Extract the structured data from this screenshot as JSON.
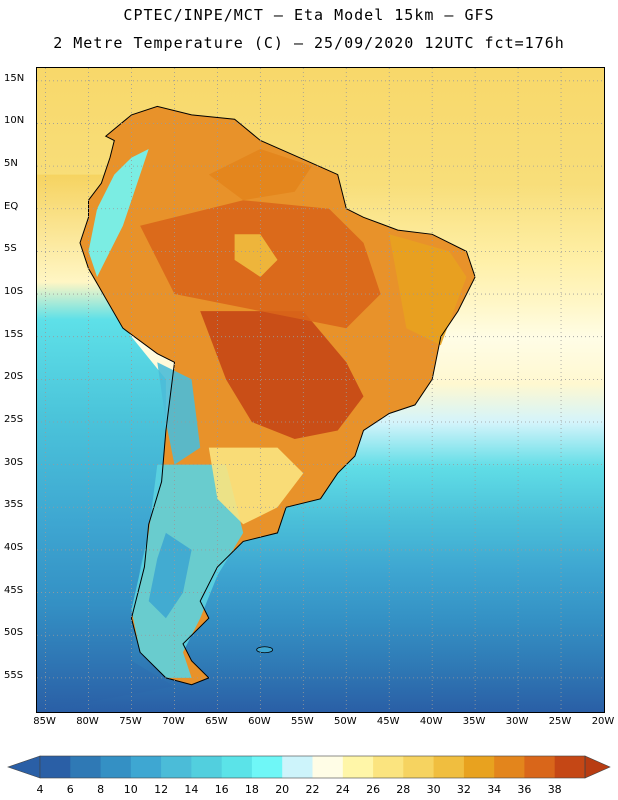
{
  "header": {
    "line1": "CPTEC/INPE/MCT –  Eta Model 15km – GFS",
    "line2": "2 Metre Temperature (C) – 25/09/2020 12UTC fct=176h"
  },
  "map": {
    "lat_labels": [
      "15N",
      "10N",
      "5N",
      "EQ",
      "5S",
      "10S",
      "15S",
      "20S",
      "25S",
      "30S",
      "35S",
      "40S",
      "45S",
      "50S",
      "55S"
    ],
    "lon_labels": [
      "85W",
      "80W",
      "75W",
      "70W",
      "65W",
      "60W",
      "55W",
      "50W",
      "45W",
      "40W",
      "35W",
      "30W",
      "25W",
      "20W"
    ],
    "lat_values": [
      15,
      10,
      5,
      0,
      -5,
      -10,
      -15,
      -20,
      -25,
      -30,
      -35,
      -40,
      -45,
      -50,
      -55
    ],
    "lon_values": [
      -85,
      -80,
      -75,
      -70,
      -65,
      -60,
      -55,
      -50,
      -45,
      -40,
      -35,
      -30,
      -25,
      -20
    ],
    "lat_range": [
      -59,
      16.5
    ],
    "lon_range": [
      -86,
      -20
    ]
  },
  "colorbar": {
    "labels": [
      "4",
      "6",
      "8",
      "10",
      "12",
      "14",
      "16",
      "18",
      "20",
      "22",
      "24",
      "26",
      "28",
      "30",
      "32",
      "34",
      "36",
      "38"
    ],
    "colors": [
      "#2a5fa6",
      "#2f79b5",
      "#3490c4",
      "#3ea7d2",
      "#4bbcd8",
      "#52cfde",
      "#5be3e8",
      "#6ff7f7",
      "#cdf4fb",
      "#fffde6",
      "#fff6a8",
      "#fbe47f",
      "#f6d360",
      "#f0be3f",
      "#e8a21f",
      "#e3851c",
      "#d9661a",
      "#c54715"
    ],
    "low_color": "#2a5fa6",
    "high_color": "#b83c12"
  }
}
